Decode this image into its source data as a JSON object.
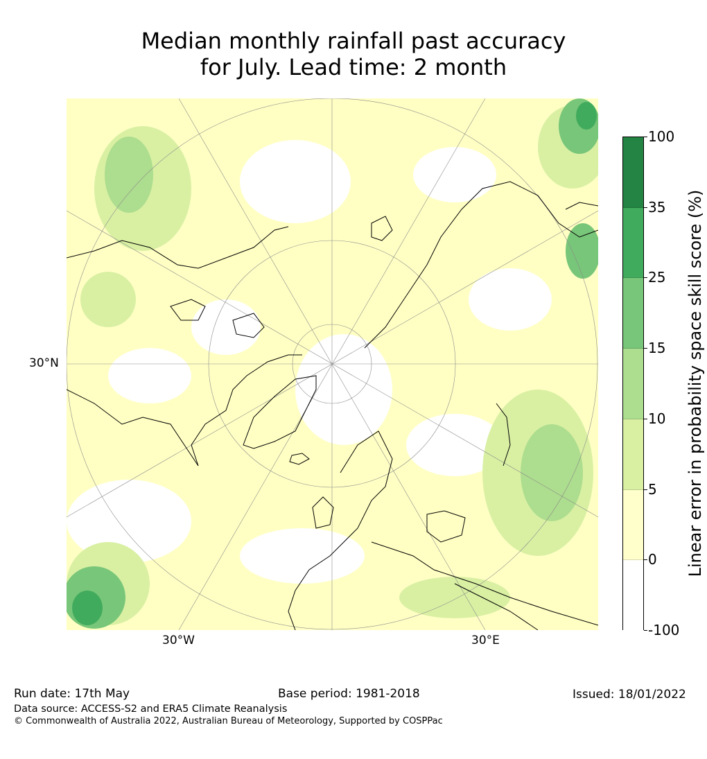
{
  "title": {
    "line1": "Median monthly rainfall past accuracy",
    "line2": "for July. Lead time: 2 month"
  },
  "map": {
    "projection": "north-polar-stereographic",
    "labels": {
      "lat": "30°N",
      "lon_west": "30°W",
      "lon_east": "30°E"
    }
  },
  "colorbar": {
    "title": "Linear error in probability space skill score (%)",
    "bounds": [
      "100",
      "35",
      "25",
      "15",
      "10",
      "5",
      "0",
      "-100"
    ],
    "colors": [
      "#238443",
      "#41ab5d",
      "#78c679",
      "#addd8e",
      "#d9f0a3",
      "#ffffcc",
      "#ffffff"
    ]
  },
  "footer": {
    "run_date": "Run date: 17th May",
    "base_period": "Base period: 1981-2018",
    "issued": "Issued: 18/01/2022",
    "data_source": "Data source: ACCESS-S2 and ERA5 Climate Reanalysis",
    "copyright": "© Commonwealth of Australia 2022, Australian Bureau of Meteorology, Supported by COSPPac"
  }
}
